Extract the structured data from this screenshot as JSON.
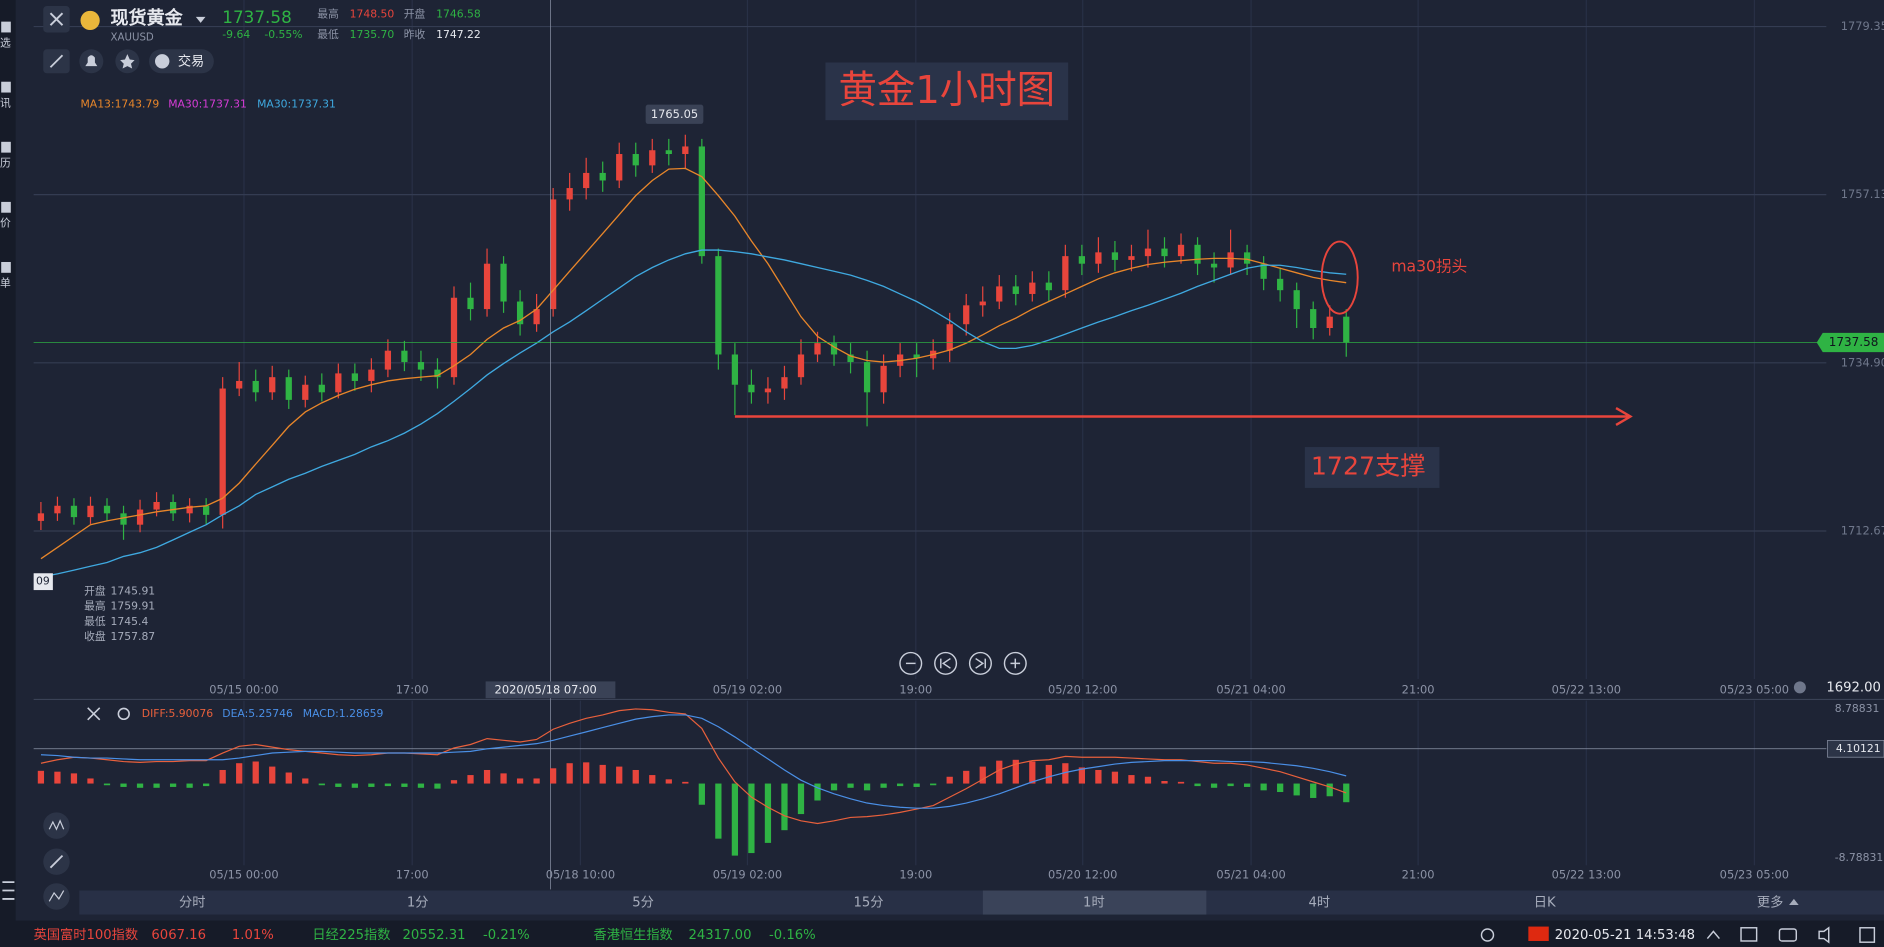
{
  "sidebar": [
    "选",
    "讯",
    "历",
    "价",
    "单"
  ],
  "header": {
    "name": "现货黄金",
    "symbol": "XAUUSD",
    "price": "1737.58",
    "change": "-9.64",
    "change_pct": "-0.55%",
    "stats": [
      {
        "label": "最高",
        "value": "1748.50"
      },
      {
        "label": "开盘",
        "value": "1746.58"
      },
      {
        "label": "最低",
        "value": "1735.70"
      },
      {
        "label": "昨收",
        "value": "1747.22"
      }
    ],
    "trade": "交易"
  },
  "info": {
    "edge": "09",
    "rows": [
      {
        "label": "开盘",
        "value": 1745.91
      },
      {
        "label": "最高",
        "value": 1759.91
      },
      {
        "label": "最低",
        "value": 1745.4
      },
      {
        "label": "收盘",
        "value": 1757.87
      }
    ]
  },
  "tabs": [
    "分时",
    "1分",
    "5分",
    "15分",
    "1时",
    "4时",
    "日K",
    "更多"
  ],
  "ticker": [
    {
      "name": "英国富时100指数",
      "value": "6067.16",
      "change": "1.01%"
    },
    {
      "name": "日经225指数",
      "value": "20552.31",
      "change": "-0.21%"
    },
    {
      "name": "香港恒生指数",
      "value": "24317.00",
      "change": "-0.16%"
    }
  ],
  "clock": "2020-05-21 14:53:48",
  "chart_data": [
    {
      "type": "candlestick",
      "title": "黄金1小时图",
      "annotations": [
        "ma30拐头",
        "1727支撑"
      ],
      "up_color": "#e8453c",
      "down_color": "#2fb344",
      "xlim": [
        -0.44,
        106.6
      ],
      "ylim": [
        1693.1,
        1782.86
      ],
      "yticks": [
        1779.35,
        1757.13,
        {
          "value": 1734.9,
          "label": "1734.90"
        },
        1712.67
      ],
      "xticks": [
        {
          "value": 12.29,
          "label": "05/15 00:00"
        },
        {
          "value": 22.47,
          "label": "17:00"
        },
        {
          "value": 42.76,
          "label": "05/19 02:00"
        },
        {
          "value": 52.95,
          "label": "19:00"
        },
        {
          "value": 63.05,
          "label": "05/20 12:00"
        },
        {
          "value": 73.24,
          "label": "05/21 04:00"
        },
        {
          "value": 83.35,
          "label": "21:00"
        },
        {
          "value": 93.53,
          "label": "05/22 13:00"
        },
        {
          "value": 103.7,
          "label": "05/23 05:00"
        }
      ],
      "grid": true,
      "open": [
        1714,
        1715,
        1716,
        1714.5,
        1716,
        1715,
        1713.5,
        1715.5,
        1716.5,
        1715,
        1716,
        1714.8,
        1731.5,
        1732.5,
        1731,
        1733,
        1730,
        1732,
        1731,
        1733.5,
        1732.5,
        1734,
        1736.5,
        1735,
        1734,
        1733,
        1743.5,
        1742,
        1748,
        1743,
        1740,
        1742,
        1756.5,
        1758,
        1760,
        1759,
        1762.5,
        1761,
        1763,
        1762.5,
        1763.5,
        1749,
        1736,
        1732,
        1731,
        1731.5,
        1733,
        1736,
        1737.5,
        1736,
        1735,
        1731,
        1734.5,
        1736,
        1735.5,
        1736.5,
        1740,
        1742.5,
        1743,
        1745,
        1744,
        1745.5,
        1744.5,
        1749,
        1748,
        1749.5,
        1748.5,
        1749,
        1750,
        1749,
        1750.5,
        1748,
        1747.5,
        1749.5,
        1748,
        1746,
        1744.5,
        1742,
        1739.5,
        1741
      ],
      "high": [
        1716.5,
        1717.2,
        1717,
        1717.2,
        1717,
        1716,
        1716.8,
        1717.8,
        1717.5,
        1717,
        1717,
        1733,
        1735,
        1734,
        1734.5,
        1734,
        1733.2,
        1733.5,
        1734.8,
        1734.8,
        1735.5,
        1738,
        1737.8,
        1736.5,
        1735.5,
        1745,
        1745.5,
        1750,
        1749,
        1744.5,
        1744,
        1758,
        1760,
        1762,
        1761.5,
        1764,
        1764,
        1764.5,
        1764.5,
        1765.05,
        1764.5,
        1750,
        1737.5,
        1734,
        1733,
        1734.5,
        1738,
        1739,
        1738.5,
        1737.5,
        1736.5,
        1736,
        1737.5,
        1737.5,
        1738,
        1741.5,
        1744,
        1745,
        1746.5,
        1746.5,
        1747,
        1747,
        1750.5,
        1750.5,
        1751.5,
        1751,
        1750.5,
        1752.5,
        1751.5,
        1752,
        1751.5,
        1749.5,
        1752.5,
        1750.5,
        1749,
        1747.5,
        1745.5,
        1743,
        1742.5,
        1742
      ],
      "low": [
        1712.8,
        1714,
        1713.5,
        1713.6,
        1714,
        1711.5,
        1712.5,
        1714.6,
        1714,
        1713.8,
        1713.6,
        1713,
        1730.5,
        1729.8,
        1730,
        1728.8,
        1729,
        1729.8,
        1730.2,
        1731.2,
        1731,
        1733,
        1733.8,
        1732.5,
        1731.5,
        1732,
        1740.5,
        1741,
        1741.5,
        1738.5,
        1739,
        1741,
        1755,
        1756.5,
        1757.5,
        1758,
        1759.5,
        1760,
        1761,
        1760.5,
        1748,
        1734,
        1728,
        1729.5,
        1729.5,
        1730,
        1732,
        1735,
        1734.5,
        1733.5,
        1726.5,
        1729.5,
        1733,
        1733,
        1734,
        1735,
        1738.5,
        1741,
        1742,
        1742.5,
        1743,
        1743,
        1743.5,
        1746.5,
        1746.8,
        1747,
        1747,
        1747.5,
        1747.5,
        1748,
        1746.5,
        1745.5,
        1746.5,
        1746.5,
        1744.5,
        1743,
        1739.5,
        1738,
        1738.5,
        1735.7
      ],
      "close": [
        1715,
        1716,
        1714.5,
        1716,
        1715,
        1713.5,
        1715.5,
        1716.5,
        1715,
        1716,
        1714.8,
        1731.5,
        1732.5,
        1731,
        1733,
        1730,
        1732,
        1731,
        1733.5,
        1732.5,
        1734,
        1736.5,
        1735,
        1734,
        1733,
        1743.5,
        1742,
        1748,
        1743,
        1740,
        1742,
        1756.5,
        1758,
        1760,
        1759,
        1762.5,
        1761,
        1763,
        1762.5,
        1763.5,
        1749,
        1736,
        1732,
        1731,
        1731.5,
        1733,
        1736,
        1737.5,
        1736,
        1735,
        1731,
        1734.5,
        1736,
        1735.5,
        1736.5,
        1740,
        1742.5,
        1743,
        1745,
        1744,
        1745.5,
        1744.5,
        1749,
        1748,
        1749.5,
        1748.5,
        1749,
        1750,
        1749,
        1750.5,
        1748,
        1747.5,
        1749.5,
        1748,
        1746,
        1744.5,
        1742,
        1739.5,
        1741,
        1737.58
      ],
      "series": [
        {
          "name": "MA13:1743.79",
          "color": "#e8862a",
          "values": [
            1709,
            1710.5,
            1712,
            1713.5,
            1714,
            1714.4,
            1714.8,
            1715.2,
            1715.5,
            1715.8,
            1716,
            1717,
            1719,
            1721.5,
            1724,
            1726.5,
            1728.4,
            1729.6,
            1730.6,
            1731.4,
            1732,
            1732.5,
            1732.8,
            1733,
            1733.2,
            1734.5,
            1736,
            1738,
            1739.5,
            1740.5,
            1742,
            1744.5,
            1747,
            1749.5,
            1752,
            1754.5,
            1757,
            1759,
            1760.5,
            1760.6,
            1759.5,
            1757,
            1754.3,
            1751,
            1748,
            1744.5,
            1741,
            1738.4,
            1737,
            1735.8,
            1735.2,
            1735,
            1735.2,
            1735.5,
            1736,
            1736.6,
            1737.5,
            1738.6,
            1739.8,
            1740.8,
            1742,
            1743,
            1744,
            1745,
            1746,
            1746.8,
            1747.4,
            1747.9,
            1748.2,
            1748.4,
            1748.6,
            1748.7,
            1748.7,
            1748.6,
            1748,
            1747.4,
            1746.8,
            1746.2,
            1745.8,
            1745.5
          ]
        },
        {
          "name": "MA30:1737.31",
          "color": "#3fa9e0",
          "values": [
            1706.6,
            1707,
            1707.5,
            1708,
            1708.5,
            1709.3,
            1709.8,
            1710.5,
            1711.5,
            1712.5,
            1713.5,
            1714.8,
            1716,
            1717.5,
            1718.5,
            1719.5,
            1720.3,
            1721.2,
            1722,
            1722.8,
            1723.8,
            1724.6,
            1725.6,
            1726.8,
            1728.2,
            1729.8,
            1731.5,
            1733.3,
            1734.8,
            1736.2,
            1737.5,
            1739,
            1740.3,
            1741.8,
            1743.3,
            1744.8,
            1746.3,
            1747.5,
            1748.5,
            1749.3,
            1749.8,
            1749.8,
            1749.6,
            1749.3,
            1748.9,
            1748.5,
            1748,
            1747.5,
            1747,
            1746.5,
            1745.8,
            1745,
            1744,
            1743,
            1741.8,
            1740.5,
            1739,
            1737.7,
            1736.8,
            1736.8,
            1737.2,
            1737.9,
            1738.7,
            1739.5,
            1740.3,
            1741,
            1741.8,
            1742.5,
            1743.3,
            1744.1,
            1745,
            1745.8,
            1746.6,
            1747.4,
            1747.8,
            1747.8,
            1747.5,
            1747.1,
            1746.8,
            1746.6
          ]
        }
      ],
      "legend_extra": {
        "text": "MA30:1737.31",
        "color": "#d63cd6"
      },
      "last_price": 1737.58,
      "bottom_price": {
        "value": 1692,
        "label": "1692.00"
      },
      "support_arrow": {
        "value": 1727.8,
        "from": 42,
        "to": 96.2
      },
      "crosshair": {
        "index": 30.84,
        "label": "2020/05/18 07:00"
      }
    },
    {
      "type": "macd",
      "xlim": [
        -0.44,
        106.6
      ],
      "ylim": [
        -9.64,
        9.78
      ],
      "yticks": [
        8.78831,
        -8.78831
      ],
      "cursor": 4.10121,
      "xticks": [
        {
          "value": 12.29,
          "label": "05/15 00:00"
        },
        {
          "value": 22.47,
          "label": "17:00"
        },
        {
          "value": 32.65,
          "label": "05/18 10:00"
        },
        {
          "value": 42.76,
          "label": "05/19 02:00"
        },
        {
          "value": 52.95,
          "label": "19:00"
        },
        {
          "value": 63.05,
          "label": "05/20 12:00"
        },
        {
          "value": 73.24,
          "label": "05/21 04:00"
        },
        {
          "value": 83.35,
          "label": "21:00"
        },
        {
          "value": 93.53,
          "label": "05/22 13:00"
        },
        {
          "value": 103.7,
          "label": "05/23 05:00"
        }
      ],
      "up_color": "#e8453c",
      "down_color": "#2fb344",
      "series": [
        {
          "name": "DIFF:5.90076",
          "color": "#e8603c",
          "values": [
            2.4,
            2.8,
            3.1,
            3,
            2.8,
            2.6,
            2.5,
            2.6,
            2.6,
            2.7,
            2.7,
            3.6,
            4.4,
            4.6,
            4.3,
            4,
            3.8,
            3.6,
            3.4,
            3.3,
            3.4,
            3.6,
            3.6,
            3.5,
            3.4,
            4.2,
            4.6,
            5.3,
            5.1,
            4.9,
            5.2,
            6.4,
            7.1,
            7.7,
            8.1,
            8.6,
            8.8,
            8.7,
            8.4,
            8.2,
            6.5,
            3,
            0.2,
            -1.6,
            -2.8,
            -3.8,
            -4.4,
            -4.7,
            -4.4,
            -4,
            -3.9,
            -3.7,
            -3.4,
            -3,
            -2.6,
            -1.6,
            -0.6,
            0.5,
            1.6,
            2.3,
            2.7,
            2.8,
            3.2,
            3.1,
            3.1,
            3.1,
            3,
            2.9,
            2.8,
            2.8,
            2.6,
            2.4,
            2.4,
            2.2,
            1.8,
            1.4,
            0.8,
            0.2,
            -0.4,
            -1.1
          ]
        },
        {
          "name": "DEA:5.25746",
          "color": "#4a8fe6",
          "values": [
            3.4,
            3.3,
            3.1,
            3,
            3,
            2.9,
            2.8,
            2.8,
            2.8,
            2.8,
            2.8,
            2.8,
            3,
            3.3,
            3.6,
            3.7,
            3.8,
            3.8,
            3.7,
            3.6,
            3.6,
            3.6,
            3.6,
            3.6,
            3.6,
            3.7,
            3.8,
            4.1,
            4.3,
            4.5,
            4.7,
            5.1,
            5.6,
            6.1,
            6.6,
            7.1,
            7.6,
            7.9,
            8.1,
            8.1,
            7.7,
            6.7,
            5.5,
            4.2,
            2.9,
            1.6,
            0.4,
            -0.5,
            -1.2,
            -1.8,
            -2.3,
            -2.6,
            -2.8,
            -2.9,
            -2.9,
            -2.7,
            -2.3,
            -1.8,
            -1.2,
            -0.5,
            0.2,
            0.8,
            1.3,
            1.7,
            2,
            2.3,
            2.5,
            2.6,
            2.7,
            2.7,
            2.7,
            2.7,
            2.6,
            2.6,
            2.5,
            2.3,
            2.1,
            1.8,
            1.4,
            0.9
          ]
        },
        {
          "name": "MACD:1.28659",
          "color": "#4a8fe6",
          "values": [
            1.5,
            1.4,
            1.2,
            0.6,
            -0.2,
            -0.4,
            -0.5,
            -0.5,
            -0.4,
            -0.5,
            -0.3,
            1.6,
            2.4,
            2.6,
            2,
            1.3,
            0.6,
            -0.2,
            -0.4,
            -0.5,
            -0.4,
            -0.3,
            -0.4,
            -0.5,
            -0.6,
            0.4,
            1,
            1.6,
            1.2,
            0.6,
            0.6,
            1.8,
            2.4,
            2.5,
            2.2,
            2,
            1.6,
            1,
            0.5,
            0.2,
            -2.5,
            -6.5,
            -8.5,
            -8.2,
            -7,
            -5.5,
            -3.6,
            -2,
            -0.8,
            -0.5,
            -0.8,
            -0.5,
            -0.3,
            -0.4,
            -0.2,
            0.8,
            1.5,
            2,
            2.7,
            2.8,
            2.6,
            2.2,
            2.4,
            1.9,
            1.6,
            1.4,
            1,
            0.8,
            0.3,
            0.2,
            -0.3,
            -0.5,
            -0.3,
            -0.4,
            -0.8,
            -1,
            -1.4,
            -1.7,
            -1.5,
            -2.2
          ]
        }
      ]
    }
  ]
}
